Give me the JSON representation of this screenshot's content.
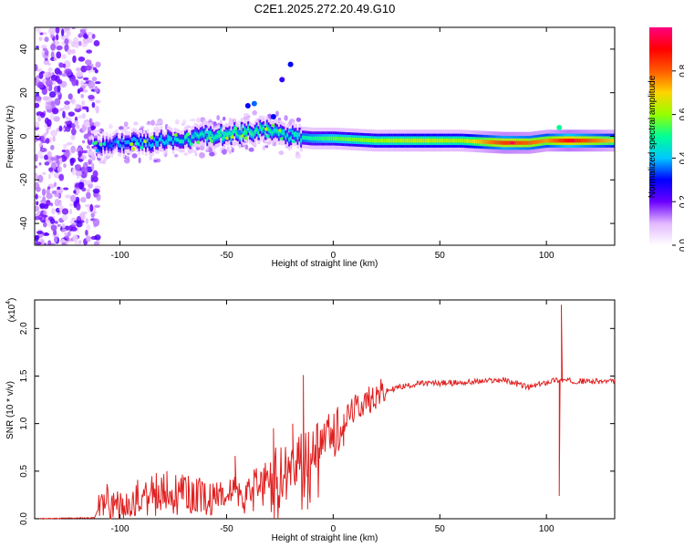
{
  "title": "C2E1.2025.272.20.49.G10",
  "chart_data": [
    {
      "type": "heatmap",
      "name": "spectrogram",
      "xlabel": "Height of straight line (km)",
      "ylabel": "Frequency (Hz)",
      "xlim": [
        -140,
        132
      ],
      "ylim": [
        -50,
        50
      ],
      "xticks": [
        -100,
        -50,
        0,
        50,
        100
      ],
      "yticks": [
        -40,
        -20,
        0,
        20,
        40
      ],
      "colorbar": {
        "label": "Normalized spectral amplitude",
        "range": [
          0,
          1
        ],
        "ticks": [
          0.0,
          0.2,
          0.4,
          0.6,
          0.8
        ],
        "tick_labels": [
          "0.0",
          "0.2",
          "0.4",
          "0.6",
          "0.8"
        ],
        "colormap": [
          "#ffffff",
          "#e3b8ff",
          "#6a00ff",
          "#0000ff",
          "#00c8ff",
          "#00ff96",
          "#96ff00",
          "#ffd400",
          "#ff5a00",
          "#ff0000",
          "#ff0080"
        ]
      },
      "ridge": [
        {
          "x": -108,
          "f": -4,
          "amp": 0.3
        },
        {
          "x": -100,
          "f": -3,
          "amp": 0.38
        },
        {
          "x": -90,
          "f": -3,
          "amp": 0.4
        },
        {
          "x": -80,
          "f": -2,
          "amp": 0.42
        },
        {
          "x": -70,
          "f": -1,
          "amp": 0.45
        },
        {
          "x": -60,
          "f": 0,
          "amp": 0.48
        },
        {
          "x": -50,
          "f": 1,
          "amp": 0.5
        },
        {
          "x": -40,
          "f": 2,
          "amp": 0.52
        },
        {
          "x": -30,
          "f": 3,
          "amp": 0.5
        },
        {
          "x": -20,
          "f": 0,
          "amp": 0.45
        },
        {
          "x": -10,
          "f": -1,
          "amp": 0.5
        },
        {
          "x": 0,
          "f": -1,
          "amp": 0.55
        },
        {
          "x": 20,
          "f": -2,
          "amp": 0.6
        },
        {
          "x": 40,
          "f": -2,
          "amp": 0.65
        },
        {
          "x": 60,
          "f": -2,
          "amp": 0.62
        },
        {
          "x": 80,
          "f": -3,
          "amp": 0.85
        },
        {
          "x": 92,
          "f": -3,
          "amp": 0.8
        },
        {
          "x": 100,
          "f": -2,
          "amp": 0.75
        },
        {
          "x": 110,
          "f": -2,
          "amp": 0.9
        },
        {
          "x": 132,
          "f": -2,
          "amp": 0.7
        }
      ],
      "features": [
        {
          "x": -37,
          "f": 15,
          "amp": 0.35
        },
        {
          "x": -40,
          "f": 14,
          "amp": 0.3
        },
        {
          "x": -28,
          "f": 9,
          "amp": 0.3
        },
        {
          "x": -20,
          "f": 33,
          "amp": 0.3
        },
        {
          "x": -24,
          "f": 26,
          "amp": 0.25
        },
        {
          "x": 106,
          "f": 4,
          "amp": 0.5
        },
        {
          "x": 84,
          "f": -3,
          "amp": 0.95
        },
        {
          "x": 112,
          "f": -2,
          "amp": 0.95
        }
      ]
    },
    {
      "type": "line",
      "name": "snr",
      "xlabel": "Height of straight line (km)",
      "ylabel": "SNR (10 * v/v)",
      "multiplier": "(x10",
      "multiplier_exp": "4",
      "multiplier_close": ")",
      "xlim": [
        -140,
        132
      ],
      "ylim": [
        0,
        2.3
      ],
      "xticks": [
        -100,
        -50,
        0,
        50,
        100
      ],
      "yticks": [
        0.0,
        0.5,
        1.0,
        1.5,
        2.0
      ],
      "ytick_labels": [
        "0.0",
        "0.5",
        "1.0",
        "1.5",
        "2.0"
      ],
      "color": "#e02020",
      "series_anchors": [
        {
          "x": -140,
          "y": 0.0
        },
        {
          "x": -112,
          "y": 0.01
        },
        {
          "x": -108,
          "y": 0.2
        },
        {
          "x": -100,
          "y": 0.12
        },
        {
          "x": -90,
          "y": 0.25
        },
        {
          "x": -80,
          "y": 0.3
        },
        {
          "x": -70,
          "y": 0.28
        },
        {
          "x": -60,
          "y": 0.25
        },
        {
          "x": -50,
          "y": 0.26
        },
        {
          "x": -40,
          "y": 0.28
        },
        {
          "x": -30,
          "y": 0.45
        },
        {
          "x": -20,
          "y": 0.55
        },
        {
          "x": -10,
          "y": 0.7
        },
        {
          "x": 0,
          "y": 0.9
        },
        {
          "x": 10,
          "y": 1.15
        },
        {
          "x": 20,
          "y": 1.3
        },
        {
          "x": 30,
          "y": 1.38
        },
        {
          "x": 40,
          "y": 1.42
        },
        {
          "x": 60,
          "y": 1.43
        },
        {
          "x": 80,
          "y": 1.46
        },
        {
          "x": 92,
          "y": 1.38
        },
        {
          "x": 104,
          "y": 1.46
        },
        {
          "x": 110,
          "y": 1.45
        },
        {
          "x": 132,
          "y": 1.44
        }
      ],
      "spikes": [
        {
          "x": -103,
          "y": 0.27
        },
        {
          "x": -78,
          "y": 0.5
        },
        {
          "x": -68,
          "y": 0.45
        },
        {
          "x": -46,
          "y": 0.66
        },
        {
          "x": -28,
          "y": 0.95
        },
        {
          "x": -22,
          "y": 0.2
        },
        {
          "x": -19,
          "y": 1.0
        },
        {
          "x": -14,
          "y": 1.51
        },
        {
          "x": -12,
          "y": 0.1
        },
        {
          "x": 5,
          "y": 1.1
        },
        {
          "x": 107,
          "y": 2.25
        },
        {
          "x": 106,
          "y": 0.24
        }
      ]
    }
  ]
}
